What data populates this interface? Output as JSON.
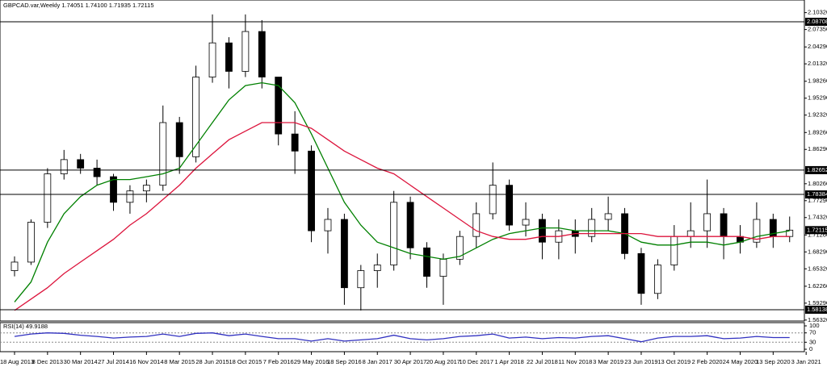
{
  "chart_data": [
    {
      "type": "candlestick",
      "title": "GBPCAD.var,Weekly  1.74051 1.74100 1.71935 1.72115",
      "categories": [
        "18 Aug 2013",
        null,
        "8 Dec 2013",
        null,
        "30 Mar 2014",
        null,
        "27 Jul 2014",
        null,
        "16 Nov 2014",
        null,
        "8 Mar 2015",
        null,
        "28 Jun 2015",
        null,
        "18 Oct 2015",
        null,
        "7 Feb 2016",
        null,
        "29 May 2016",
        null,
        "18 Sep 2016",
        null,
        "8 Jan 2017",
        null,
        "30 Apr 2017",
        null,
        "20 Aug 2017",
        null,
        "10 Dec 2017",
        null,
        "1 Apr 2018",
        null,
        "22 Jul 2018",
        null,
        "11 Nov 2018",
        null,
        "3 Mar 2019",
        null,
        "23 Jun 2019",
        null,
        "13 Oct 2019",
        null,
        "2 Feb 2020",
        null,
        "24 May 2020",
        null,
        "13 Sep 2020",
        null,
        "3 Jan 2021"
      ],
      "open": [
        1.65,
        1.665,
        1.735,
        1.82,
        1.845,
        1.83,
        1.815,
        1.77,
        1.79,
        1.8,
        1.91,
        1.85,
        1.99,
        2.05,
        2.0,
        2.07,
        1.99,
        1.89,
        1.86,
        1.72,
        1.74,
        1.62,
        1.65,
        1.66,
        1.77,
        1.69,
        1.64,
        1.67,
        1.71,
        1.75,
        1.8,
        1.73,
        1.74,
        1.7,
        1.72,
        1.71,
        1.74,
        1.75,
        1.68,
        1.61,
        1.66,
        1.71,
        1.72,
        1.75,
        1.71,
        1.7,
        1.74,
        1.71,
        null
      ],
      "high": [
        1.675,
        1.74,
        1.83,
        1.862,
        1.855,
        1.845,
        1.82,
        1.8,
        1.81,
        1.94,
        1.92,
        2.01,
        2.1,
        2.06,
        2.1,
        2.09,
        1.99,
        1.93,
        1.87,
        1.76,
        1.75,
        1.66,
        1.68,
        1.79,
        1.78,
        1.7,
        1.68,
        1.72,
        1.77,
        1.84,
        1.81,
        1.77,
        1.75,
        1.74,
        1.74,
        1.76,
        1.78,
        1.76,
        1.69,
        1.67,
        1.73,
        1.77,
        1.81,
        1.76,
        1.73,
        1.77,
        1.75,
        1.745,
        null
      ],
      "low": [
        1.64,
        1.66,
        1.725,
        1.81,
        1.82,
        1.8,
        1.755,
        1.75,
        1.77,
        1.79,
        1.82,
        1.84,
        1.98,
        1.97,
        1.99,
        1.97,
        1.87,
        1.82,
        1.7,
        1.68,
        1.59,
        1.58,
        1.62,
        1.65,
        1.67,
        1.62,
        1.59,
        1.66,
        1.69,
        1.74,
        1.72,
        1.71,
        1.67,
        1.67,
        1.68,
        1.7,
        1.72,
        1.67,
        1.59,
        1.6,
        1.65,
        1.69,
        1.69,
        1.67,
        1.68,
        1.69,
        1.69,
        1.7,
        null
      ],
      "close": [
        1.665,
        1.735,
        1.82,
        1.845,
        1.83,
        1.815,
        1.77,
        1.79,
        1.8,
        1.91,
        1.85,
        1.99,
        2.05,
        2.0,
        2.07,
        1.99,
        1.89,
        1.86,
        1.72,
        1.74,
        1.62,
        1.65,
        1.66,
        1.77,
        1.69,
        1.64,
        1.67,
        1.71,
        1.75,
        1.8,
        1.73,
        1.74,
        1.7,
        1.72,
        1.71,
        1.74,
        1.75,
        1.68,
        1.61,
        1.66,
        1.71,
        1.72,
        1.75,
        1.71,
        1.7,
        1.74,
        1.71,
        1.72115,
        null
      ],
      "bull_color": "#ffffff",
      "bear_color": "#000000",
      "overlays": [
        {
          "color": "#008000",
          "values": [
            1.595,
            1.63,
            1.7,
            1.75,
            1.78,
            1.8,
            1.81,
            1.81,
            1.815,
            1.82,
            1.83,
            1.87,
            1.91,
            1.95,
            1.975,
            1.98,
            1.975,
            1.945,
            1.89,
            1.83,
            1.77,
            1.73,
            1.7,
            1.69,
            1.68,
            1.675,
            1.67,
            1.675,
            1.69,
            1.705,
            1.715,
            1.72,
            1.725,
            1.725,
            1.72,
            1.72,
            1.72,
            1.715,
            1.7,
            1.695,
            1.695,
            1.7,
            1.7,
            1.695,
            1.7,
            1.71,
            1.715,
            1.72,
            null
          ]
        },
        {
          "color": "#dc143c",
          "values": [
            1.58,
            1.6,
            1.62,
            1.645,
            1.665,
            1.685,
            1.705,
            1.73,
            1.75,
            1.775,
            1.8,
            1.83,
            1.855,
            1.88,
            1.895,
            1.91,
            1.91,
            1.91,
            1.9,
            1.88,
            1.86,
            1.845,
            1.83,
            1.82,
            1.8,
            1.78,
            1.76,
            1.74,
            1.72,
            1.71,
            1.705,
            1.705,
            1.71,
            1.71,
            1.715,
            1.715,
            1.715,
            1.715,
            1.715,
            1.71,
            1.71,
            1.71,
            1.71,
            1.71,
            1.71,
            1.705,
            1.71,
            1.71,
            null
          ]
        }
      ],
      "levels": [
        2.08708,
        1.82652,
        1.78384,
        1.58138
      ],
      "level_color": "#000000",
      "last_price": 1.72115,
      "ylim": [
        1.5615,
        2.1225
      ],
      "yticks": [
        {
          "value": 2.1032,
          "label": "2.10320"
        },
        {
          "value": 2.0735,
          "label": "2.07350"
        },
        {
          "value": 2.0429,
          "label": "2.04290"
        },
        {
          "value": 2.0132,
          "label": "2.01320"
        },
        {
          "value": 1.9826,
          "label": "1.98260"
        },
        {
          "value": 1.9529,
          "label": "1.95290"
        },
        {
          "value": 1.9232,
          "label": "1.92320"
        },
        {
          "value": 1.8926,
          "label": "1.89260"
        },
        {
          "value": 1.8629,
          "label": "1.86290"
        },
        {
          "value": 1.8026,
          "label": "1.80260"
        },
        {
          "value": 1.7729,
          "label": "1.77290"
        },
        {
          "value": 1.7432,
          "label": "1.74320"
        },
        {
          "value": 1.7126,
          "label": "1.71260"
        },
        {
          "value": 1.6829,
          "label": "1.68290"
        },
        {
          "value": 1.6532,
          "label": "1.65320"
        },
        {
          "value": 1.6226,
          "label": "1.62260"
        },
        {
          "value": 1.5929,
          "label": "1.59290"
        },
        {
          "value": 1.5632,
          "label": "1.56320"
        }
      ]
    },
    {
      "type": "line",
      "title": "RSI(14) 49.9188",
      "color": "#3030c0",
      "values": [
        55,
        65,
        70,
        68,
        60,
        55,
        48,
        52,
        55,
        65,
        55,
        68,
        70,
        58,
        65,
        55,
        45,
        45,
        35,
        45,
        35,
        40,
        45,
        60,
        45,
        40,
        45,
        55,
        58,
        65,
        48,
        52,
        45,
        50,
        48,
        55,
        58,
        45,
        32,
        48,
        55,
        55,
        58,
        45,
        48,
        55,
        50,
        49.9188,
        null
      ],
      "ylim": [
        0,
        100
      ],
      "yticks": [
        0,
        30,
        70,
        100
      ]
    }
  ]
}
